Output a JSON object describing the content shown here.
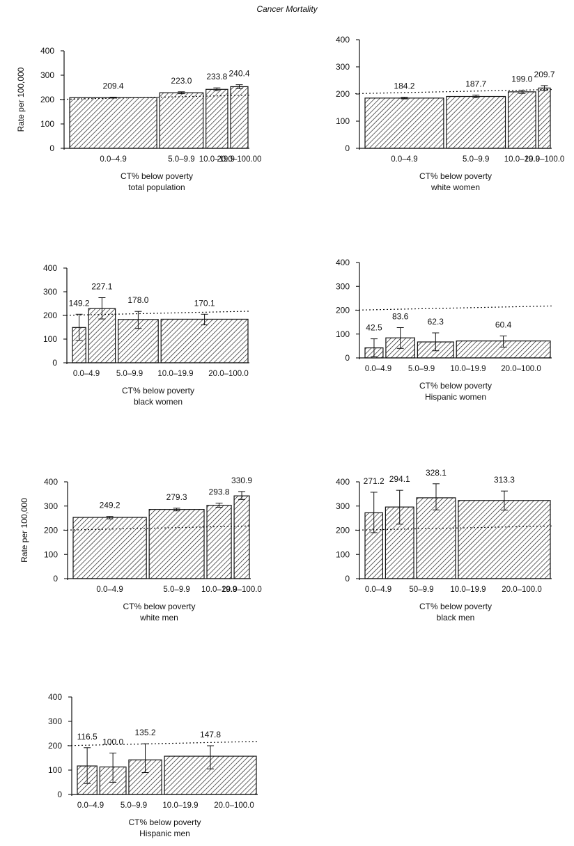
{
  "figure_title": "Cancer Mortality",
  "chart_data": [
    {
      "type": "bar",
      "title": "",
      "xlabel": "CT% below poverty",
      "subgroup": "total population",
      "ylabel": "Rate per 100,000",
      "ylim": [
        0,
        400
      ],
      "yticks": [
        "0",
        "100",
        "200",
        "300",
        "400"
      ],
      "reference_line": 209.4,
      "categories": [
        "0.0–4.9",
        "5.0–9.9",
        "10.0–19.9",
        "20.0–100.00"
      ],
      "values": [
        209.4,
        223.0,
        233.8,
        240.4
      ],
      "value_labels": [
        "209.4",
        "223.0",
        "233.8",
        "240.4"
      ],
      "bar_heights": [
        208,
        228,
        242,
        253
      ],
      "error_bars": [
        [
          206,
          210
        ],
        [
          224,
          232
        ],
        [
          236,
          248
        ],
        [
          245,
          261
        ]
      ],
      "bar_widths": [
        2,
        1,
        0.5,
        0.4
      ]
    },
    {
      "type": "bar",
      "title": "",
      "xlabel": "CT% below poverty",
      "subgroup": "white women",
      "ylabel": "",
      "ylim": [
        0,
        400
      ],
      "yticks": [
        "0",
        "100",
        "200",
        "300",
        "400"
      ],
      "reference_line": 209,
      "categories": [
        "0.0–4.9",
        "5.0–9.9",
        "10.0–19.9",
        "20.0–100.0"
      ],
      "values": [
        184.2,
        187.7,
        199.0,
        209.7
      ],
      "value_labels": [
        "184.2",
        "187.7",
        "199.0",
        "209.7"
      ],
      "bar_heights": [
        185,
        191,
        208,
        222
      ],
      "error_bars": [
        [
          182,
          188
        ],
        [
          186,
          196
        ],
        [
          202,
          214
        ],
        [
          213,
          231
        ]
      ],
      "bar_widths": [
        2,
        1.5,
        0.7,
        0.3
      ]
    },
    {
      "type": "bar",
      "title": "",
      "xlabel": "CT% below poverty",
      "subgroup": "black women",
      "ylabel": "",
      "ylim": [
        0,
        400
      ],
      "yticks": [
        "0",
        "100",
        "200",
        "300",
        "400"
      ],
      "reference_line": 209,
      "categories": [
        "0.0–4.9",
        "5.0–9.9",
        "10.0–19.9",
        "20.0–100.0"
      ],
      "values": [
        149.2,
        227.1,
        178.0,
        170.1
      ],
      "value_labels": [
        "149.2",
        "227.1",
        "178.0",
        "170.1"
      ],
      "bar_heights": [
        149,
        229,
        183,
        184
      ],
      "error_bars": [
        [
          95,
          205
        ],
        [
          185,
          275
        ],
        [
          145,
          217
        ],
        [
          160,
          205
        ]
      ],
      "bar_widths": [
        0.4,
        0.8,
        1.2,
        2.6
      ]
    },
    {
      "type": "bar",
      "title": "",
      "xlabel": "CT% below poverty",
      "subgroup": "Hispanic women",
      "ylabel": "",
      "ylim": [
        0,
        400
      ],
      "yticks": [
        "0",
        "100",
        "200",
        "300",
        "400"
      ],
      "reference_line": 209,
      "categories": [
        "0.0–4.9",
        "5.0–9.9",
        "10.0–19.9",
        "20.0–100.0"
      ],
      "values": [
        42.5,
        83.6,
        62.3,
        60.4
      ],
      "value_labels": [
        "42.5",
        "83.6",
        "62.3",
        "60.4"
      ],
      "bar_heights": [
        42,
        84,
        67,
        71
      ],
      "error_bars": [
        [
          5,
          80
        ],
        [
          40,
          127
        ],
        [
          30,
          105
        ],
        [
          45,
          92
        ]
      ],
      "bar_widths": [
        0.5,
        0.8,
        1.0,
        2.6
      ]
    },
    {
      "type": "bar",
      "title": "",
      "xlabel": "CT% below poverty",
      "subgroup": "white men",
      "ylabel": "Rate per 100,000",
      "ylim": [
        0,
        400
      ],
      "yticks": [
        "0",
        "100",
        "200",
        "300",
        "400"
      ],
      "reference_line": 209,
      "categories": [
        "0.0–4.9",
        "5.0–9.9",
        "10.0–19.9",
        "20.0–100.0"
      ],
      "values": [
        249.2,
        279.3,
        293.8,
        330.9
      ],
      "value_labels": [
        "249.2",
        "279.3",
        "293.8",
        "330.9"
      ],
      "bar_heights": [
        253,
        286,
        303,
        342
      ],
      "error_bars": [
        [
          247,
          257
        ],
        [
          280,
          291
        ],
        [
          295,
          312
        ],
        [
          327,
          360
        ]
      ],
      "bar_widths": [
        2.4,
        1.8,
        0.8,
        0.5
      ]
    },
    {
      "type": "bar",
      "title": "",
      "xlabel": "CT% below poverty",
      "subgroup": "black men",
      "ylabel": "",
      "ylim": [
        0,
        400
      ],
      "yticks": [
        "0",
        "100",
        "200",
        "300",
        "400"
      ],
      "reference_line": 209,
      "categories": [
        "0.0–4.9",
        "50–9.9",
        "10.0–19.9",
        "20.0–100.0"
      ],
      "values": [
        271.2,
        294.1,
        328.1,
        313.3
      ],
      "value_labels": [
        "271.2",
        "294.1",
        "328.1",
        "313.3"
      ],
      "bar_heights": [
        272,
        296,
        334,
        323
      ],
      "error_bars": [
        [
          190,
          357
        ],
        [
          225,
          365
        ],
        [
          284,
          392
        ],
        [
          283,
          362
        ]
      ],
      "bar_widths": [
        0.5,
        0.8,
        1.1,
        2.6
      ]
    },
    {
      "type": "bar",
      "title": "",
      "xlabel": "CT% below poverty",
      "subgroup": "Hispanic men",
      "ylabel": "",
      "ylim": [
        0,
        400
      ],
      "yticks": [
        "0",
        "100",
        "200",
        "300",
        "400"
      ],
      "reference_line": 209,
      "categories": [
        "0.0–4.9",
        "5.0–9.9",
        "10.0–19.9",
        "20.0–100.0"
      ],
      "values": [
        116.5,
        100.0,
        135.2,
        147.8
      ],
      "value_labels": [
        "116.5",
        "100.0",
        "135.2",
        "147.8"
      ],
      "bar_heights": [
        117,
        113,
        142,
        157
      ],
      "error_bars": [
        [
          45,
          192
        ],
        [
          50,
          170
        ],
        [
          90,
          208
        ],
        [
          105,
          200
        ]
      ],
      "bar_widths": [
        0.6,
        0.8,
        1.0,
        2.8
      ]
    }
  ],
  "style": {
    "bar_fill_pattern": "diagonal-hatch",
    "bar_stroke": "#111111",
    "axis_color": "#111111",
    "reference_line_style": "dotted"
  }
}
